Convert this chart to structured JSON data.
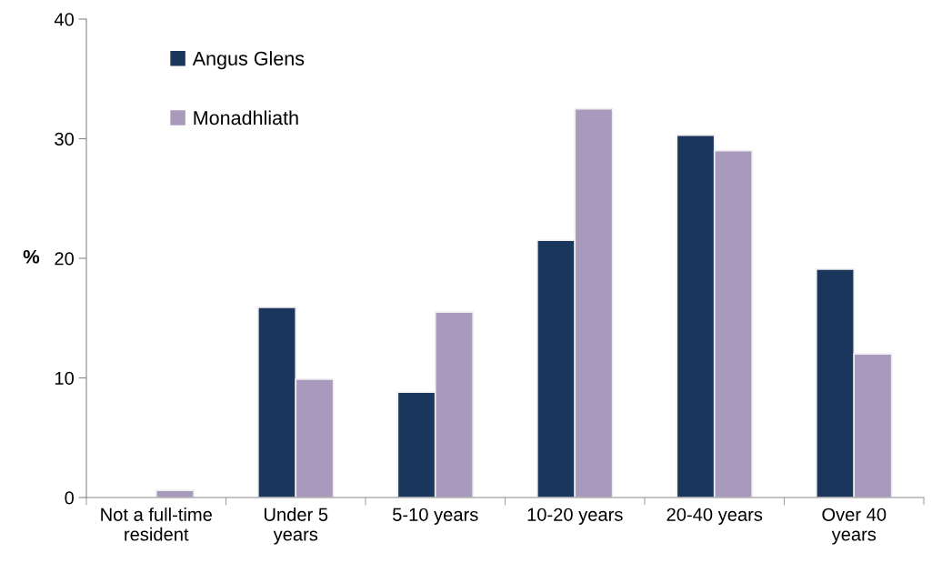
{
  "chart_data": {
    "type": "bar",
    "ylabel": "%",
    "categories": [
      "Not a full-time\nresident",
      "Under 5\nyears",
      "5-10 years",
      "10-20 years",
      "20-40 years",
      "Over 40\nyears"
    ],
    "series": [
      {
        "name": "Angus Glens",
        "color": "#1a365d",
        "values": [
          null,
          15.9,
          8.8,
          21.5,
          30.3,
          19.1
        ]
      },
      {
        "name": "Monadhliath",
        "color": "#a99abd",
        "values": [
          0.6,
          9.9,
          15.5,
          32.5,
          29.0,
          12.0
        ]
      }
    ],
    "ylim": [
      0,
      40
    ],
    "yticks": [
      0,
      10,
      20,
      30,
      40
    ],
    "grid": false,
    "legend": "top left"
  }
}
